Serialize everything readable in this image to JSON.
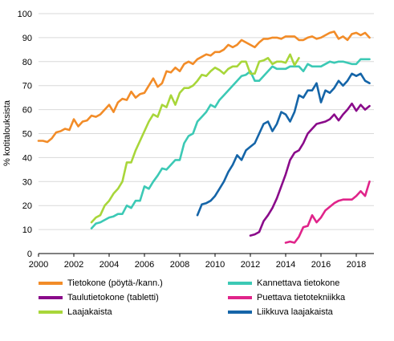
{
  "chart_data": {
    "type": "line",
    "title": "",
    "xlabel": "",
    "ylabel": "% kotitalouksista",
    "xlim": [
      2000,
      2019
    ],
    "ylim": [
      0,
      100
    ],
    "xticks": [
      "2000",
      "2002",
      "2004",
      "2006",
      "2008",
      "2010",
      "2012",
      "2014",
      "2016",
      "2018"
    ],
    "yticks": [
      "0",
      "10",
      "20",
      "30",
      "40",
      "50",
      "60",
      "70",
      "80",
      "90",
      "100"
    ],
    "grid": "horizontal",
    "legend_position": "bottom",
    "series": [
      {
        "name": "Tietokone (pöytä-/kann.)",
        "color": "#f28c28",
        "x": [
          2000.0,
          2000.25,
          2000.5,
          2000.75,
          2001.0,
          2001.25,
          2001.5,
          2001.75,
          2002.0,
          2002.25,
          2002.5,
          2002.75,
          2003.0,
          2003.25,
          2003.5,
          2003.75,
          2004.0,
          2004.25,
          2004.5,
          2004.75,
          2005.0,
          2005.25,
          2005.5,
          2005.75,
          2006.0,
          2006.25,
          2006.5,
          2006.75,
          2007.0,
          2007.25,
          2007.5,
          2007.75,
          2008.0,
          2008.25,
          2008.5,
          2008.75,
          2009.0,
          2009.25,
          2009.5,
          2009.75,
          2010.0,
          2010.25,
          2010.5,
          2010.75,
          2011.0,
          2011.25,
          2011.5,
          2011.75,
          2012.0,
          2012.25,
          2012.5,
          2012.75,
          2013.0,
          2013.25,
          2013.5,
          2013.75,
          2014.0,
          2014.25,
          2014.5,
          2014.75,
          2015.0,
          2015.25,
          2015.5,
          2015.75,
          2016.0,
          2016.25,
          2016.5,
          2016.75,
          2017.0,
          2017.25,
          2017.5,
          2017.75,
          2018.0,
          2018.25,
          2018.5,
          2018.75
        ],
        "values": [
          47,
          47,
          46.5,
          48,
          50.5,
          51,
          52,
          51.5,
          56,
          53,
          55,
          55.5,
          57.5,
          57,
          58,
          60,
          62,
          59,
          63,
          64.5,
          64,
          67.5,
          65,
          66.5,
          67,
          70,
          73,
          69.5,
          71,
          76,
          75.5,
          77.5,
          76,
          79,
          80,
          79,
          81,
          82,
          83,
          82.5,
          84,
          84,
          85,
          87,
          86,
          87,
          89,
          88,
          87,
          86,
          88,
          89.5,
          89.5,
          90,
          90,
          89.5,
          90.5,
          90.5,
          90.5,
          89,
          89,
          90,
          90.5,
          89.5,
          90,
          91,
          92,
          92.5,
          89.5,
          90.5,
          89,
          91.5,
          92,
          91,
          92,
          90
        ]
      },
      {
        "name": "Kannettava tietokone",
        "color": "#3cc9b5",
        "x": [
          2003.0,
          2003.25,
          2003.5,
          2003.75,
          2004.0,
          2004.25,
          2004.5,
          2004.75,
          2005.0,
          2005.25,
          2005.5,
          2005.75,
          2006.0,
          2006.25,
          2006.5,
          2006.75,
          2007.0,
          2007.25,
          2007.5,
          2007.75,
          2008.0,
          2008.25,
          2008.5,
          2008.75,
          2009.0,
          2009.25,
          2009.5,
          2009.75,
          2010.0,
          2010.25,
          2010.5,
          2010.75,
          2011.0,
          2011.25,
          2011.5,
          2011.75,
          2012.0,
          2012.25,
          2012.5,
          2012.75,
          2013.0,
          2013.25,
          2013.5,
          2013.75,
          2014.0,
          2014.25,
          2014.5,
          2014.75,
          2015.0,
          2015.25,
          2015.5,
          2015.75,
          2016.0,
          2016.25,
          2016.5,
          2016.75,
          2017.0,
          2017.25,
          2017.5,
          2017.75,
          2018.0,
          2018.25,
          2018.5,
          2018.75
        ],
        "values": [
          10.5,
          12.5,
          13,
          14,
          15,
          15.5,
          16.5,
          16.5,
          20,
          19,
          22,
          22,
          28,
          27,
          30,
          32.5,
          35.5,
          35,
          37,
          39,
          39,
          46,
          49,
          50,
          55,
          57,
          59,
          62,
          61,
          64,
          66,
          68,
          70,
          72,
          74,
          74.5,
          76,
          72,
          72,
          74,
          76,
          78,
          77,
          77,
          77,
          78,
          78,
          78,
          76,
          79,
          78,
          78,
          78,
          79,
          80,
          79.5,
          80,
          80,
          79.5,
          79,
          79,
          81,
          81,
          81
        ]
      },
      {
        "name": "Taulutietokone (tabletti)",
        "color": "#8a0a8a",
        "x": [
          2012.0,
          2012.25,
          2012.5,
          2012.75,
          2013.0,
          2013.25,
          2013.5,
          2013.75,
          2014.0,
          2014.25,
          2014.5,
          2014.75,
          2015.0,
          2015.25,
          2015.5,
          2015.75,
          2016.0,
          2016.25,
          2016.5,
          2016.75,
          2017.0,
          2017.25,
          2017.5,
          2017.75,
          2018.0,
          2018.25,
          2018.5,
          2018.75
        ],
        "values": [
          7.5,
          8,
          9,
          13.5,
          16,
          19,
          23,
          28,
          33,
          39,
          42,
          43,
          46,
          50,
          52,
          54,
          54.5,
          55,
          56,
          58,
          55.5,
          58,
          60,
          62.5,
          59.5,
          62,
          60,
          61.5
        ]
      },
      {
        "name": "Puettava tietotekniikka",
        "color": "#e0248a",
        "x": [
          2014.0,
          2014.25,
          2014.5,
          2014.75,
          2015.0,
          2015.25,
          2015.5,
          2015.75,
          2016.0,
          2016.25,
          2016.5,
          2016.75,
          2017.0,
          2017.25,
          2017.5,
          2017.75,
          2018.0,
          2018.25,
          2018.5,
          2018.75
        ],
        "values": [
          4.5,
          5,
          4.5,
          7,
          11,
          11.5,
          16,
          13,
          15,
          18,
          19.5,
          21,
          22,
          22.5,
          22.5,
          22.5,
          24,
          26,
          24,
          30
        ]
      },
      {
        "name": "Laajakaista",
        "color": "#a8d63a",
        "x": [
          2003.0,
          2003.25,
          2003.5,
          2003.75,
          2004.0,
          2004.25,
          2004.5,
          2004.75,
          2005.0,
          2005.25,
          2005.5,
          2005.75,
          2006.0,
          2006.25,
          2006.5,
          2006.75,
          2007.0,
          2007.25,
          2007.5,
          2007.75,
          2008.0,
          2008.25,
          2008.5,
          2008.75,
          2009.0,
          2009.25,
          2009.5,
          2009.75,
          2010.0,
          2010.25,
          2010.5,
          2010.75,
          2011.0,
          2011.25,
          2011.5,
          2011.75,
          2012.0,
          2012.25,
          2012.5,
          2012.75,
          2013.0,
          2013.25,
          2013.5,
          2013.75,
          2014.0,
          2014.25,
          2014.5,
          2014.75
        ],
        "values": [
          13,
          15,
          16,
          20,
          22,
          25,
          27,
          30,
          38,
          38,
          43,
          47,
          51,
          55,
          58,
          57,
          62,
          61,
          66,
          62,
          67,
          69,
          69,
          70,
          72,
          74.5,
          74,
          76,
          77.5,
          76.5,
          75,
          77,
          78,
          78,
          80,
          80,
          75,
          75,
          80,
          80.5,
          81.5,
          79,
          80,
          80,
          79.5,
          83,
          78.5,
          81.5
        ]
      },
      {
        "name": "Liikkuva laajakaista",
        "color": "#1565a8",
        "x": [
          2009.0,
          2009.25,
          2009.5,
          2009.75,
          2010.0,
          2010.25,
          2010.5,
          2010.75,
          2011.0,
          2011.25,
          2011.5,
          2011.75,
          2012.0,
          2012.25,
          2012.5,
          2012.75,
          2013.0,
          2013.25,
          2013.5,
          2013.75,
          2014.0,
          2014.25,
          2014.5,
          2014.75,
          2015.0,
          2015.25,
          2015.5,
          2015.75,
          2016.0,
          2016.25,
          2016.5,
          2016.75,
          2017.0,
          2017.25,
          2017.5,
          2017.75,
          2018.0,
          2018.25,
          2018.5,
          2018.75
        ],
        "values": [
          16,
          20.5,
          21,
          22,
          24,
          27,
          30,
          34,
          37,
          41,
          39,
          43,
          44.5,
          46,
          50,
          54,
          55,
          51,
          54,
          59,
          58,
          55,
          59,
          66,
          65,
          68,
          68,
          71,
          63,
          68,
          67,
          69,
          72,
          70,
          72,
          75,
          74,
          75,
          72,
          71
        ]
      }
    ]
  }
}
